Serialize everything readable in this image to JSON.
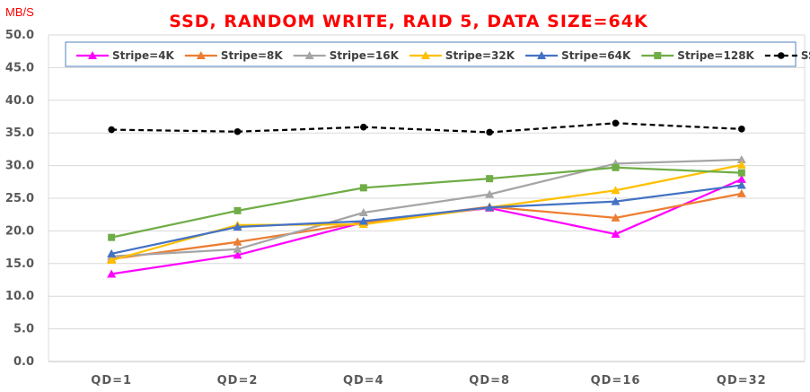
{
  "chart_data": {
    "type": "line",
    "title": "SSD, RANDOM WRITE, RAID 5, DATA SIZE=64K",
    "ylabel": "MB/S",
    "xlabel": "",
    "ylim": [
      0,
      50
    ],
    "yticks": [
      "0.0",
      "5.0",
      "10.0",
      "15.0",
      "20.0",
      "25.0",
      "30.0",
      "35.0",
      "40.0",
      "45.0",
      "50.0"
    ],
    "categories": [
      "QD=1",
      "QD=2",
      "QD=4",
      "QD=8",
      "QD=16",
      "QD=32"
    ],
    "grid": true,
    "legend_position": "top",
    "series": [
      {
        "name": "Stripe=4K",
        "color": "#ff00ff",
        "marker": "triangle",
        "dash": "solid",
        "values": [
          13.4,
          16.3,
          21.3,
          23.5,
          19.5,
          27.9
        ]
      },
      {
        "name": "Stripe=8K",
        "color": "#ed7d31",
        "marker": "triangle",
        "dash": "solid",
        "values": [
          15.7,
          18.3,
          21.3,
          23.7,
          22.0,
          25.7
        ]
      },
      {
        "name": "Stripe=16K",
        "color": "#a5a5a5",
        "marker": "triangle",
        "dash": "solid",
        "values": [
          16.1,
          17.2,
          22.8,
          25.6,
          30.3,
          30.9
        ]
      },
      {
        "name": "Stripe=32K",
        "color": "#ffc000",
        "marker": "triangle",
        "dash": "solid",
        "values": [
          15.5,
          20.9,
          21.0,
          23.6,
          26.2,
          30.1
        ]
      },
      {
        "name": "Stripe=64K",
        "color": "#4472c4",
        "marker": "triangle",
        "dash": "solid",
        "values": [
          16.5,
          20.6,
          21.5,
          23.6,
          24.5,
          27.0
        ]
      },
      {
        "name": "Stripe=128K",
        "color": "#70ad47",
        "marker": "square",
        "dash": "solid",
        "values": [
          19.0,
          23.1,
          26.6,
          28.0,
          29.7,
          28.9
        ]
      },
      {
        "name": "SSD",
        "color": "#000000",
        "marker": "circle",
        "dash": "dashed",
        "values": [
          35.5,
          35.2,
          35.9,
          35.1,
          36.5,
          35.6
        ]
      }
    ]
  },
  "colors": {
    "title": "#ff0000",
    "ylabel": "#ff0000",
    "grid": "#d9d9d9",
    "axis": "#bfbfbf",
    "legend_border": "#4f81bd"
  }
}
